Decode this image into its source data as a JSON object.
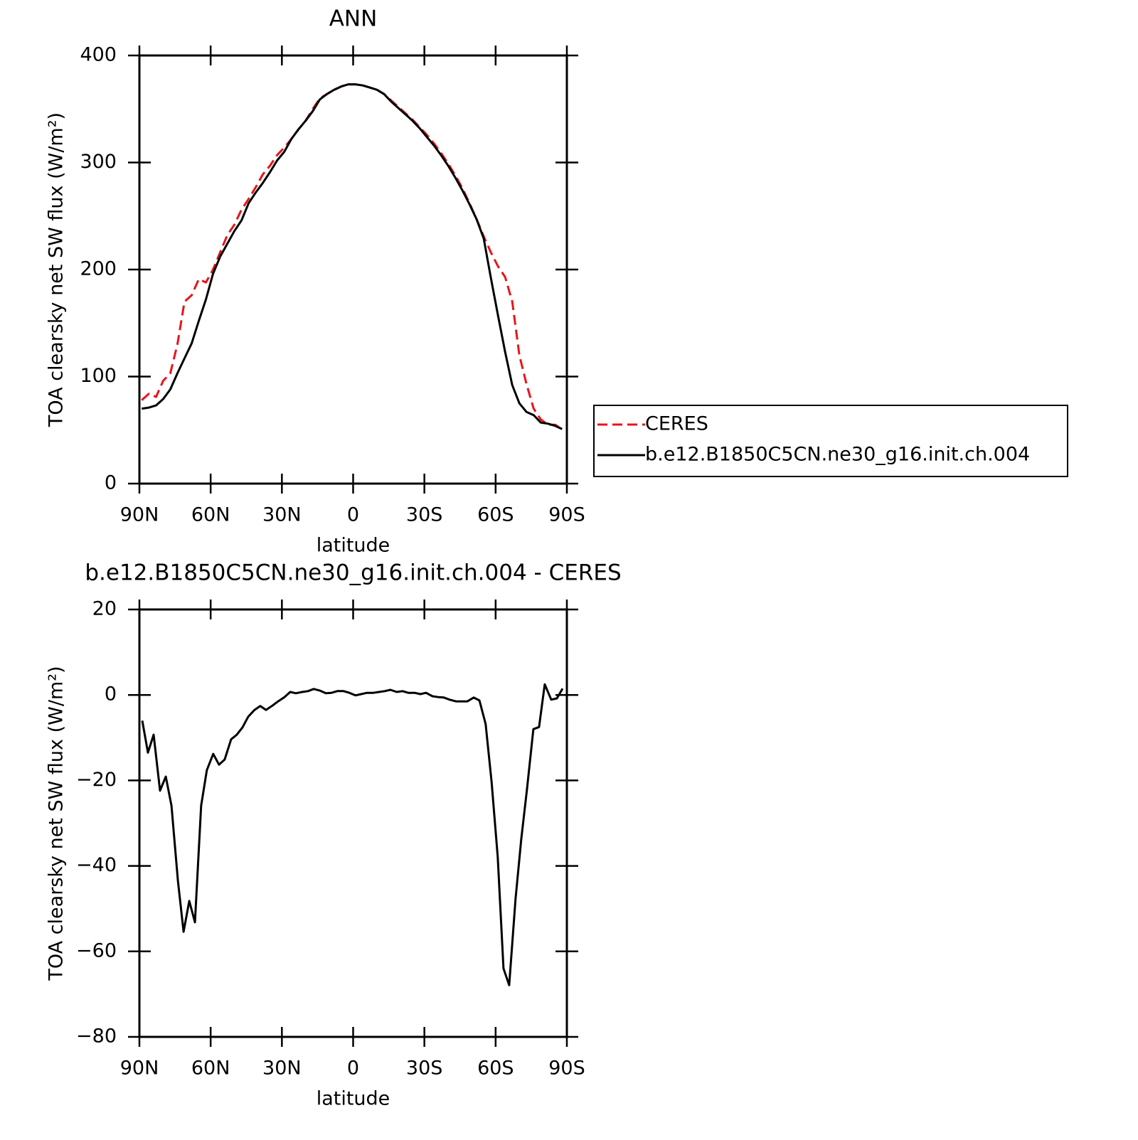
{
  "chart_data": [
    {
      "type": "line",
      "title": "ANN",
      "xlabel": "latitude",
      "ylabel": "TOA clearsky net SW flux (W/m²)",
      "xlim": [
        90,
        -90
      ],
      "ylim": [
        0,
        400
      ],
      "xticks": [
        {
          "value": 90,
          "label": "90N"
        },
        {
          "value": 60,
          "label": "60N"
        },
        {
          "value": 30,
          "label": "30N"
        },
        0,
        {
          "value": -30,
          "label": "30S"
        },
        {
          "value": -60,
          "label": "60S"
        },
        {
          "value": -90,
          "label": "90S"
        }
      ],
      "yticks": [
        0,
        100,
        200,
        300,
        400
      ],
      "legend": "outside-right",
      "x": [
        89,
        86,
        83,
        80,
        77,
        74,
        71,
        68,
        65,
        62,
        59,
        56,
        53,
        50,
        47,
        44,
        41,
        38,
        35,
        32,
        29,
        26,
        23,
        20,
        17,
        14,
        11,
        8,
        5,
        2,
        -1,
        -4,
        -7,
        -10,
        -13,
        -16,
        -19,
        -22,
        -25,
        -28,
        -31,
        -34,
        -37,
        -40,
        -43,
        -46,
        -49,
        -52,
        -55,
        -58,
        -61,
        -64,
        -67,
        -70,
        -73,
        -76,
        -79,
        -82,
        -85,
        -88
      ],
      "series": [
        {
          "name": "CERES",
          "color": "#e8141a",
          "style": "dashed",
          "values": [
            78,
            84,
            81,
            96,
            103,
            130,
            170,
            176,
            191,
            188,
            200,
            216,
            232,
            242,
            256,
            266,
            277,
            289,
            297,
            307,
            314,
            322,
            331,
            339,
            350,
            360,
            364,
            368,
            371,
            373,
            373,
            372,
            370,
            368,
            364,
            358,
            352,
            346,
            340,
            333,
            326,
            318,
            309,
            299,
            288,
            276,
            262,
            247,
            231,
            216,
            203,
            193,
            170,
            120,
            93,
            70,
            60,
            55,
            55,
            51
          ]
        },
        {
          "name": "b.e12.B1850C5CN.ne30_g16.init.ch.004",
          "color": "#000000",
          "style": "solid",
          "values": [
            70,
            71,
            73,
            79,
            88,
            103,
            117,
            131,
            152,
            172,
            196,
            212,
            224,
            236,
            246,
            262,
            272,
            281,
            291,
            302,
            310,
            322,
            331,
            339,
            348,
            359,
            364,
            368,
            371,
            373,
            373,
            372,
            370,
            368,
            364,
            357,
            351,
            345,
            339,
            332,
            324,
            316,
            307,
            297,
            286,
            274,
            261,
            247,
            229,
            192,
            157,
            123,
            92,
            75,
            67,
            64,
            57,
            56,
            54,
            51
          ]
        }
      ]
    },
    {
      "type": "line",
      "title": "b.e12.B1850C5CN.ne30_g16.init.ch.004 - CERES",
      "xlabel": "latitude",
      "ylabel": "TOA clearsky net SW flux (W/m²)",
      "xlim": [
        90,
        -90
      ],
      "ylim": [
        -80,
        20
      ],
      "xticks": [
        {
          "value": 90,
          "label": "90N"
        },
        {
          "value": 60,
          "label": "60N"
        },
        {
          "value": 30,
          "label": "30N"
        },
        0,
        {
          "value": -30,
          "label": "30S"
        },
        {
          "value": -60,
          "label": "60S"
        },
        {
          "value": -90,
          "label": "90S"
        }
      ],
      "yticks": [
        {
          "value": -80,
          "label": "−80"
        },
        {
          "value": -60,
          "label": "−60"
        },
        {
          "value": -40,
          "label": "−40"
        },
        {
          "value": -20,
          "label": "−20"
        },
        0,
        20
      ],
      "color": "#000000",
      "x": [
        88.8,
        86.4,
        84,
        81.3,
        78.9,
        76.5,
        73.8,
        71.4,
        69,
        66.6,
        64,
        61.6,
        58.9,
        56.5,
        54.1,
        51.4,
        49,
        46.6,
        44.2,
        41.5,
        39.1,
        36.7,
        34,
        31.6,
        28.9,
        26.5,
        24.1,
        21.4,
        19,
        16.6,
        13.9,
        11.5,
        9.1,
        6.7,
        4,
        1.6,
        -1,
        -3.4,
        -5.8,
        -8.5,
        -10.9,
        -13.3,
        -15.7,
        -18.4,
        -20.8,
        -23.2,
        -25.9,
        -28.3,
        -30.7,
        -33.4,
        -35.8,
        -38.2,
        -40.6,
        -43.3,
        -45.7,
        -48.1,
        -50.8,
        -53.2,
        -55.8,
        -58.3,
        -60.9,
        -63.3,
        -65.7,
        -68.4,
        -70.8,
        -73.2,
        -75.9,
        -78.3,
        -80.7,
        -83.4,
        -85.8,
        -88.2
      ],
      "values": [
        -6,
        -13.5,
        -9.3,
        -22.4,
        -19.1,
        -25.9,
        -43.4,
        -55.4,
        -48.2,
        -53.2,
        -25.9,
        -17.6,
        -13.8,
        -16.3,
        -15.1,
        -10.4,
        -9.3,
        -7.6,
        -5.1,
        -3.5,
        -2.6,
        -3.5,
        -2.5,
        -1.5,
        -0.5,
        0.7,
        0.4,
        0.7,
        0.9,
        1.4,
        1,
        0.4,
        0.5,
        0.9,
        0.9,
        0.5,
        -0.1,
        0.2,
        0.5,
        0.5,
        0.7,
        0.9,
        1.2,
        0.7,
        0.9,
        0.5,
        0.5,
        0.2,
        0.5,
        -0.3,
        -0.5,
        -0.6,
        -1.1,
        -1.5,
        -1.5,
        -1.5,
        -0.6,
        -1.3,
        -6.8,
        -20.4,
        -37.9,
        -64,
        -67.9,
        -47.6,
        -33.7,
        -22.1,
        -8,
        -7.5,
        2.5,
        -1.1,
        -0.8,
        1.5
      ]
    }
  ]
}
